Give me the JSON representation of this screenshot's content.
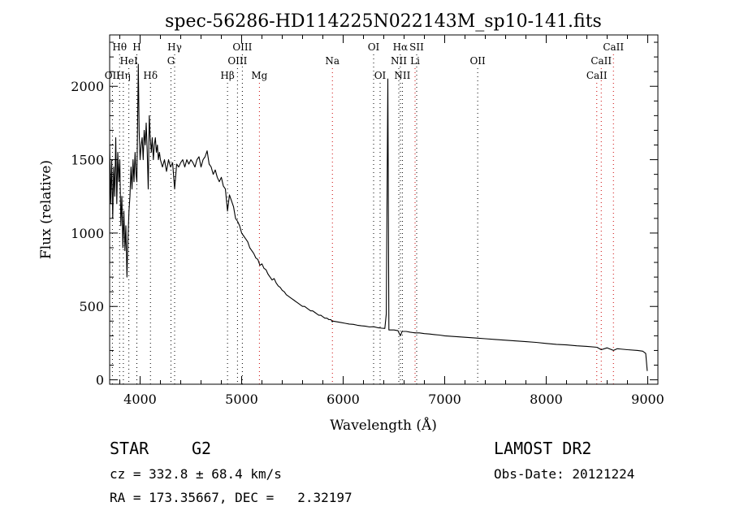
{
  "chart_data": {
    "type": "line",
    "title": "spec-56286-HD114225N022143M_sp10-141.fits",
    "xlabel": "Wavelength (Å)",
    "ylabel": "Flux (relative)",
    "xlim": [
      3700,
      9100
    ],
    "ylim": [
      -30,
      2350
    ],
    "xticks": [
      4000,
      5000,
      6000,
      7000,
      8000,
      9000
    ],
    "yticks": [
      0,
      500,
      1000,
      1500,
      2000
    ],
    "grid": false,
    "line_color": "#000000",
    "marker_color_black": "#000000",
    "marker_color_red": "#cc0000",
    "series": [
      {
        "points": [
          [
            3700,
            1600
          ],
          [
            3710,
            1200
          ],
          [
            3720,
            1500
          ],
          [
            3730,
            1100
          ],
          [
            3740,
            1450
          ],
          [
            3750,
            1250
          ],
          [
            3760,
            1650
          ],
          [
            3770,
            1200
          ],
          [
            3780,
            1550
          ],
          [
            3790,
            1350
          ],
          [
            3800,
            1500
          ],
          [
            3810,
            1050
          ],
          [
            3820,
            1250
          ],
          [
            3830,
            900
          ],
          [
            3840,
            1150
          ],
          [
            3850,
            880
          ],
          [
            3860,
            1050
          ],
          [
            3870,
            700
          ],
          [
            3880,
            950
          ],
          [
            3890,
            1150
          ],
          [
            3900,
            1250
          ],
          [
            3910,
            1450
          ],
          [
            3920,
            1300
          ],
          [
            3930,
            1500
          ],
          [
            3940,
            1350
          ],
          [
            3950,
            1550
          ],
          [
            3960,
            1400
          ],
          [
            3968,
            1350
          ],
          [
            3975,
            1750
          ],
          [
            3982,
            2150
          ],
          [
            3990,
            1700
          ],
          [
            4000,
            1500
          ],
          [
            4010,
            1600
          ],
          [
            4020,
            1650
          ],
          [
            4030,
            1500
          ],
          [
            4040,
            1700
          ],
          [
            4050,
            1600
          ],
          [
            4060,
            1750
          ],
          [
            4070,
            1550
          ],
          [
            4080,
            1300
          ],
          [
            4090,
            1800
          ],
          [
            4100,
            1650
          ],
          [
            4110,
            1550
          ],
          [
            4120,
            1650
          ],
          [
            4130,
            1500
          ],
          [
            4140,
            1600
          ],
          [
            4150,
            1650
          ],
          [
            4160,
            1550
          ],
          [
            4170,
            1600
          ],
          [
            4180,
            1500
          ],
          [
            4190,
            1550
          ],
          [
            4200,
            1500
          ],
          [
            4220,
            1450
          ],
          [
            4240,
            1500
          ],
          [
            4260,
            1420
          ],
          [
            4280,
            1500
          ],
          [
            4300,
            1450
          ],
          [
            4320,
            1480
          ],
          [
            4340,
            1300
          ],
          [
            4360,
            1470
          ],
          [
            4380,
            1450
          ],
          [
            4400,
            1480
          ],
          [
            4420,
            1500
          ],
          [
            4440,
            1450
          ],
          [
            4460,
            1500
          ],
          [
            4480,
            1470
          ],
          [
            4500,
            1500
          ],
          [
            4520,
            1480
          ],
          [
            4540,
            1450
          ],
          [
            4560,
            1500
          ],
          [
            4580,
            1520
          ],
          [
            4600,
            1450
          ],
          [
            4620,
            1500
          ],
          [
            4640,
            1520
          ],
          [
            4660,
            1560
          ],
          [
            4680,
            1470
          ],
          [
            4700,
            1450
          ],
          [
            4720,
            1400
          ],
          [
            4740,
            1430
          ],
          [
            4760,
            1380
          ],
          [
            4780,
            1350
          ],
          [
            4800,
            1380
          ],
          [
            4820,
            1320
          ],
          [
            4840,
            1300
          ],
          [
            4861,
            1150
          ],
          [
            4880,
            1260
          ],
          [
            4900,
            1220
          ],
          [
            4920,
            1180
          ],
          [
            4940,
            1100
          ],
          [
            4960,
            1080
          ],
          [
            4980,
            1050
          ],
          [
            5000,
            1000
          ],
          [
            5020,
            980
          ],
          [
            5040,
            960
          ],
          [
            5060,
            940
          ],
          [
            5080,
            900
          ],
          [
            5100,
            880
          ],
          [
            5120,
            860
          ],
          [
            5140,
            830
          ],
          [
            5160,
            820
          ],
          [
            5180,
            780
          ],
          [
            5200,
            790
          ],
          [
            5220,
            760
          ],
          [
            5240,
            750
          ],
          [
            5260,
            720
          ],
          [
            5280,
            700
          ],
          [
            5300,
            680
          ],
          [
            5320,
            690
          ],
          [
            5340,
            660
          ],
          [
            5360,
            640
          ],
          [
            5380,
            630
          ],
          [
            5400,
            610
          ],
          [
            5420,
            600
          ],
          [
            5440,
            580
          ],
          [
            5460,
            570
          ],
          [
            5480,
            560
          ],
          [
            5500,
            550
          ],
          [
            5520,
            540
          ],
          [
            5540,
            530
          ],
          [
            5560,
            520
          ],
          [
            5580,
            510
          ],
          [
            5600,
            500
          ],
          [
            5620,
            500
          ],
          [
            5640,
            490
          ],
          [
            5660,
            480
          ],
          [
            5680,
            470
          ],
          [
            5700,
            470
          ],
          [
            5720,
            460
          ],
          [
            5740,
            450
          ],
          [
            5760,
            440
          ],
          [
            5780,
            440
          ],
          [
            5800,
            430
          ],
          [
            5820,
            420
          ],
          [
            5840,
            420
          ],
          [
            5860,
            410
          ],
          [
            5880,
            410
          ],
          [
            5893,
            395
          ],
          [
            5900,
            400
          ],
          [
            5940,
            395
          ],
          [
            5980,
            390
          ],
          [
            6020,
            385
          ],
          [
            6060,
            380
          ],
          [
            6100,
            378
          ],
          [
            6140,
            372
          ],
          [
            6180,
            368
          ],
          [
            6220,
            365
          ],
          [
            6260,
            360
          ],
          [
            6300,
            362
          ],
          [
            6340,
            355
          ],
          [
            6380,
            352
          ],
          [
            6410,
            350
          ],
          [
            6425,
            450
          ],
          [
            6440,
            2050
          ],
          [
            6450,
            340
          ],
          [
            6500,
            340
          ],
          [
            6540,
            335
          ],
          [
            6563,
            300
          ],
          [
            6580,
            330
          ],
          [
            6620,
            330
          ],
          [
            6660,
            325
          ],
          [
            6708,
            320
          ],
          [
            6750,
            320
          ],
          [
            6800,
            315
          ],
          [
            6850,
            312
          ],
          [
            6900,
            308
          ],
          [
            6950,
            305
          ],
          [
            7000,
            300
          ],
          [
            7100,
            295
          ],
          [
            7200,
            290
          ],
          [
            7300,
            285
          ],
          [
            7400,
            280
          ],
          [
            7500,
            275
          ],
          [
            7600,
            270
          ],
          [
            7700,
            265
          ],
          [
            7800,
            260
          ],
          [
            7900,
            255
          ],
          [
            8000,
            248
          ],
          [
            8100,
            242
          ],
          [
            8200,
            238
          ],
          [
            8300,
            232
          ],
          [
            8400,
            228
          ],
          [
            8500,
            222
          ],
          [
            8542,
            205
          ],
          [
            8600,
            218
          ],
          [
            8662,
            200
          ],
          [
            8700,
            212
          ],
          [
            8800,
            205
          ],
          [
            8900,
            200
          ],
          [
            8950,
            195
          ],
          [
            8980,
            180
          ],
          [
            8995,
            60
          ]
        ]
      }
    ],
    "line_markers": [
      {
        "name": "OII",
        "wavelength": 3727,
        "color": "black",
        "row": 3
      },
      {
        "name": "Hθ",
        "wavelength": 3798,
        "color": "black",
        "row": 1
      },
      {
        "name": "Hη",
        "wavelength": 3835,
        "color": "black",
        "row": 3
      },
      {
        "name": "HeI",
        "wavelength": 3889,
        "color": "black",
        "row": 2
      },
      {
        "name": "H",
        "wavelength": 3968,
        "color": "black",
        "row": 1
      },
      {
        "name": "Hδ",
        "wavelength": 4102,
        "color": "black",
        "row": 3
      },
      {
        "name": "Hγ",
        "wavelength": 4340,
        "color": "black",
        "row": 1
      },
      {
        "name": "G",
        "wavelength": 4304,
        "color": "black",
        "row": 2
      },
      {
        "name": "Hβ",
        "wavelength": 4861,
        "color": "black",
        "row": 3
      },
      {
        "name": "OIII",
        "wavelength": 5007,
        "color": "black",
        "row": 1
      },
      {
        "name": "OIII",
        "wavelength": 4959,
        "color": "black",
        "row": 2
      },
      {
        "name": "Mg",
        "wavelength": 5175,
        "color": "red",
        "row": 3
      },
      {
        "name": "Na",
        "wavelength": 5894,
        "color": "red",
        "row": 2
      },
      {
        "name": "OI",
        "wavelength": 6300,
        "color": "black",
        "row": 1
      },
      {
        "name": "OI",
        "wavelength": 6364,
        "color": "black",
        "row": 3
      },
      {
        "name": "Hα",
        "wavelength": 6563,
        "color": "black",
        "row": 1
      },
      {
        "name": "SII",
        "wavelength": 6724,
        "color": "black",
        "row": 1
      },
      {
        "name": "NII",
        "wavelength": 6548,
        "color": "black",
        "row": 2
      },
      {
        "name": "NII",
        "wavelength": 6583,
        "color": "black",
        "row": 3
      },
      {
        "name": "Li",
        "wavelength": 6708,
        "color": "red",
        "row": 2
      },
      {
        "name": "OII",
        "wavelength": 7325,
        "color": "black",
        "row": 2
      },
      {
        "name": "CaII",
        "wavelength": 8662,
        "color": "red",
        "row": 1
      },
      {
        "name": "CaII",
        "wavelength": 8542,
        "color": "red",
        "row": 2
      },
      {
        "name": "CaII",
        "wavelength": 8498,
        "color": "red",
        "row": 3
      }
    ]
  },
  "info": {
    "object_class": "STAR",
    "subclass": "G2",
    "survey": "LAMOST DR2",
    "redshift": "cz = 332.8 ± 68.4 km/s",
    "obs_date": "Obs-Date: 20121224",
    "coords": "RA = 173.35667, DEC =   2.32197"
  }
}
